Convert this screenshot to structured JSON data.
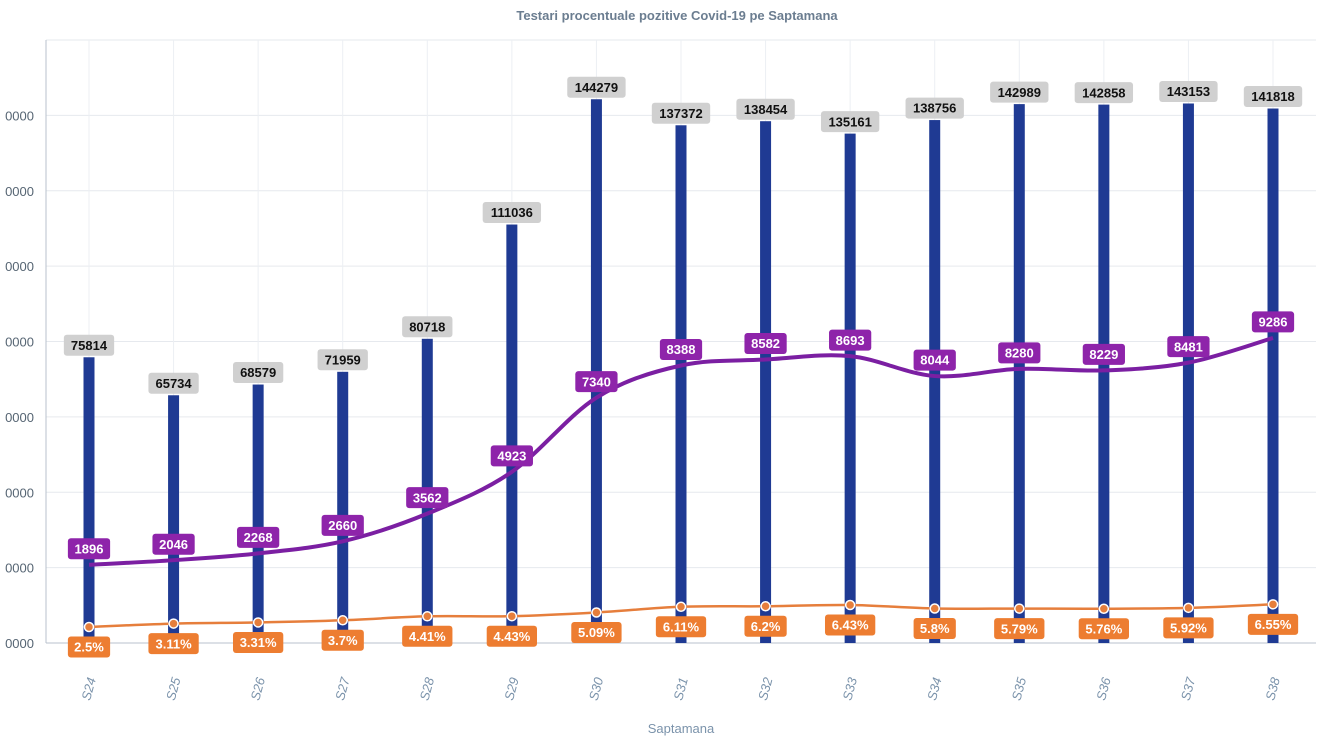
{
  "chart_data": {
    "type": "bar",
    "title": "Testari procentuale pozitive Covid-19 pe Saptamana",
    "xlabel": "Saptamana",
    "ylabel": "",
    "categories": [
      "S24",
      "S25",
      "S26",
      "S27",
      "S28",
      "S29",
      "S30",
      "S31",
      "S32",
      "S33",
      "S34",
      "S35",
      "S36",
      "S37",
      "S38"
    ],
    "ylim": [
      0,
      160000
    ],
    "ytick_labels": [
      "0000",
      "0000",
      "0000",
      "0000",
      "0000",
      "0000",
      "0000",
      "0000"
    ],
    "grid": true,
    "legend": "none",
    "series": [
      {
        "kind": "bar",
        "color": "#1f3a93",
        "label_bg": "#d0d0d0",
        "values": [
          75814,
          65734,
          68579,
          71959,
          80718,
          111036,
          144279,
          137372,
          138454,
          135161,
          138756,
          142989,
          142858,
          143153,
          141818
        ],
        "labels": [
          "75814",
          "65734",
          "68579",
          "71959",
          "80718",
          "111036",
          "144279",
          "137372",
          "138454",
          "135161",
          "138756",
          "142989",
          "142858",
          "143153",
          "141818"
        ]
      },
      {
        "kind": "line",
        "color": "#7b1fa2",
        "label_bg": "#8e24aa",
        "values": [
          1896,
          2046,
          2268,
          2660,
          3562,
          4923,
          7340,
          8388,
          8582,
          8693,
          8044,
          8280,
          8229,
          8481,
          9286
        ],
        "labels": [
          "1896",
          "2046",
          "2268",
          "2660",
          "3562",
          "4923",
          "7340",
          "8388",
          "8582",
          "8693",
          "8044",
          "8280",
          "8229",
          "8481",
          "9286"
        ]
      },
      {
        "kind": "line",
        "color": "#e67e3c",
        "label_bg": "#ed7d31",
        "values": [
          2.5,
          3.11,
          3.31,
          3.7,
          4.41,
          4.43,
          5.09,
          6.11,
          6.2,
          6.43,
          5.8,
          5.79,
          5.76,
          5.92,
          6.55
        ],
        "labels": [
          "2.5%",
          "3.11%",
          "3.31%",
          "3.7%",
          "4.41%",
          "4.43%",
          "5.09%",
          "6.11%",
          "6.2%",
          "6.43%",
          "5.8%",
          "5.79%",
          "5.76%",
          "5.92%",
          "6.55%"
        ]
      }
    ]
  }
}
